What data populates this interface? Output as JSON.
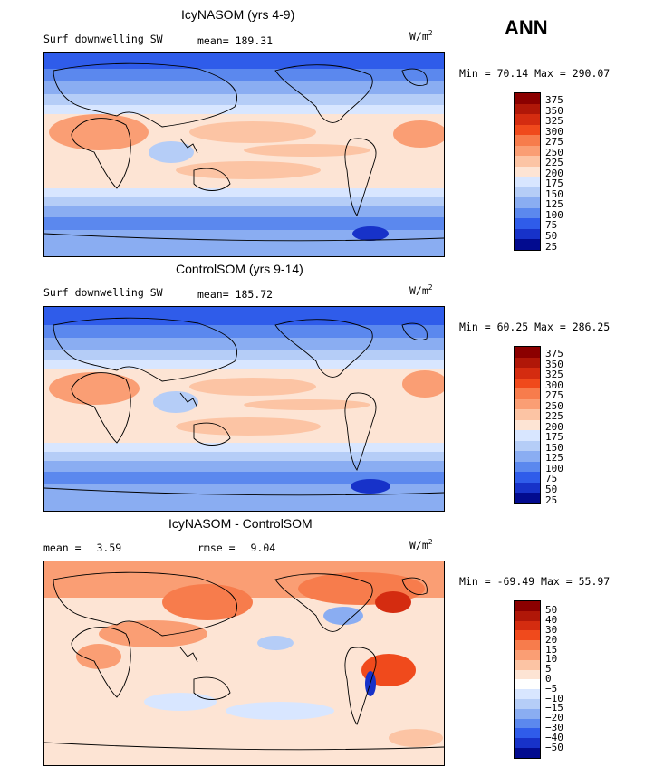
{
  "season": "ANN",
  "panels": [
    {
      "title": "IcyNASOM (yrs 4-9)",
      "variable": "Surf downwelling SW",
      "mean_label": "mean=",
      "mean_value": "189.31",
      "units_base": "W/m",
      "units_exp": "2",
      "min_label": "Min =",
      "min_value": "70.14",
      "max_label": "Max =",
      "max_value": "290.07",
      "levels": [
        "375",
        "350",
        "325",
        "300",
        "275",
        "250",
        "225",
        "200",
        "175",
        "150",
        "125",
        "100",
        "75",
        "50",
        "25"
      ],
      "colors": [
        "#8b0000",
        "#b01708",
        "#d42c10",
        "#f04a1c",
        "#f77c4c",
        "#fa9e74",
        "#fcc4a4",
        "#fde4d4",
        "#d8e6ff",
        "#b5cdf7",
        "#8aadf2",
        "#5b88ee",
        "#2f5cea",
        "#1732c9",
        "#020b8f"
      ]
    },
    {
      "title": "ControlSOM (yrs 9-14)",
      "variable": "Surf downwelling SW",
      "mean_label": "mean=",
      "mean_value": "185.72",
      "units_base": "W/m",
      "units_exp": "2",
      "min_label": "Min =",
      "min_value": "60.25",
      "max_label": "Max =",
      "max_value": "286.25",
      "levels": [
        "375",
        "350",
        "325",
        "300",
        "275",
        "250",
        "225",
        "200",
        "175",
        "150",
        "125",
        "100",
        "75",
        "50",
        "25"
      ],
      "colors": [
        "#8b0000",
        "#b01708",
        "#d42c10",
        "#f04a1c",
        "#f77c4c",
        "#fa9e74",
        "#fcc4a4",
        "#fde4d4",
        "#d8e6ff",
        "#b5cdf7",
        "#8aadf2",
        "#5b88ee",
        "#2f5cea",
        "#1732c9",
        "#020b8f"
      ]
    },
    {
      "title": "IcyNASOM - ControlSOM",
      "mean_label": "mean =",
      "mean_value": "3.59",
      "rmse_label": "rmse =",
      "rmse_value": "9.04",
      "units_base": "W/m",
      "units_exp": "2",
      "min_label": "Min =",
      "min_value": "-69.49",
      "max_label": "Max =",
      "max_value": "55.97",
      "levels": [
        "50",
        "40",
        "30",
        "20",
        "15",
        "10",
        "5",
        "0",
        "−5",
        "−10",
        "−15",
        "−20",
        "−30",
        "−40",
        "−50"
      ],
      "colors": [
        "#8b0000",
        "#b01708",
        "#d42c10",
        "#f04a1c",
        "#f77c4c",
        "#fa9e74",
        "#fcc4a4",
        "#fde4d4",
        "#ffffff",
        "#d8e6ff",
        "#b5cdf7",
        "#8aadf2",
        "#5b88ee",
        "#2f5cea",
        "#1732c9",
        "#020b8f"
      ]
    }
  ]
}
